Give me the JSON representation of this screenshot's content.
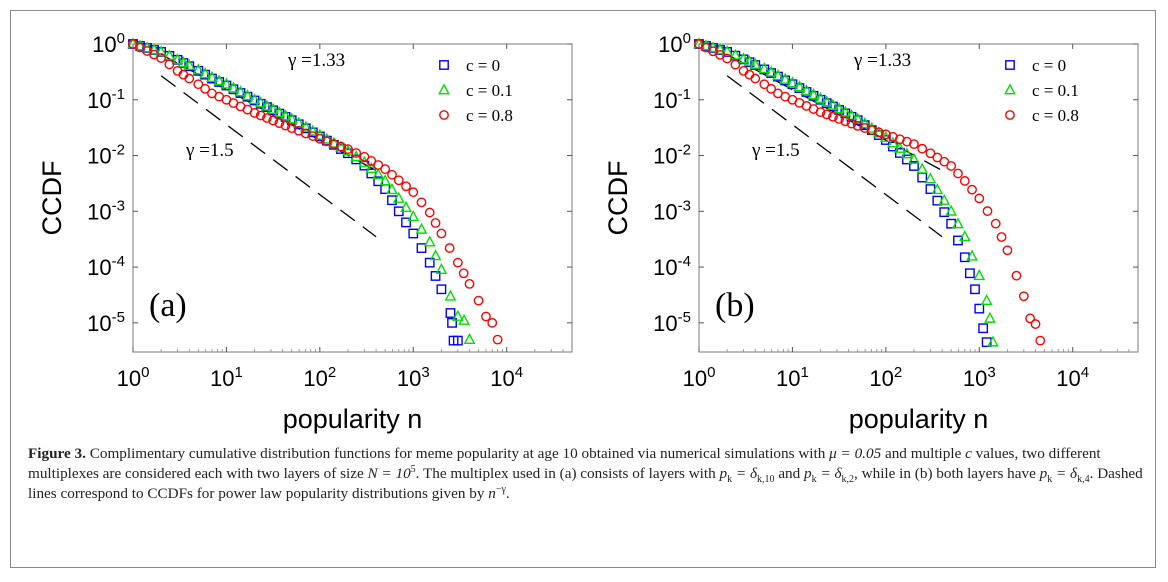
{
  "figure": {
    "caption_label": "Figure 3.",
    "caption_part1": " Complimentary cumulative distribution functions for meme popularity at age 10 obtained via numerical simulations with ",
    "caption_mu": "μ = 0.05",
    "caption_part2": " and multiple ",
    "caption_c": "c",
    "caption_part3": " values, two different multiplexes are considered each with two layers of size ",
    "caption_N": "N = 10",
    "caption_N_exp": "5",
    "caption_part4": ". The multiplex used in (a) consists of layers with ",
    "caption_pk1": "p",
    "caption_pk1_sub": "k",
    "caption_eq1": " = δ",
    "caption_eq1_sub": "k,10",
    "caption_part5": " and ",
    "caption_pk2": "p",
    "caption_pk2_sub": "k",
    "caption_eq2": " = δ",
    "caption_eq2_sub": "k,2",
    "caption_part6": ", while in (b) both layers have ",
    "caption_pk3": "p",
    "caption_pk3_sub": "k",
    "caption_eq3": " = δ",
    "caption_eq3_sub": "k,4",
    "caption_part7": ". Dashed lines correspond to CCDFs for power law popularity distributions given by ",
    "caption_n": "n",
    "caption_n_exp": "−γ",
    "caption_end": "."
  },
  "colors": {
    "c0": "#0000ff",
    "c01": "#00e000",
    "c08": "#ff0000",
    "guide": "#000000"
  },
  "chart_data": [
    {
      "type": "scatter",
      "panel_label": "(a)",
      "xlabel": "popularity n",
      "ylabel": "CCDF",
      "xscale": "log",
      "yscale": "log",
      "xlim": [
        1,
        50000
      ],
      "ylim": [
        3e-06,
        1
      ],
      "xticks": [
        "10^0",
        "10^1",
        "10^2",
        "10^3",
        "10^4"
      ],
      "yticks": [
        "10^0",
        "10^-1",
        "10^-2",
        "10^-3",
        "10^-4",
        "10^-5"
      ],
      "legend_position": "top-right",
      "series": [
        {
          "name": "c = 0",
          "marker": "square",
          "color": "#0000ff",
          "points": [
            [
              1,
              1
            ],
            [
              2,
              0.72
            ],
            [
              3,
              0.52
            ],
            [
              4,
              0.4
            ],
            [
              5,
              0.33
            ],
            [
              7,
              0.24
            ],
            [
              10,
              0.18
            ],
            [
              20,
              0.097
            ],
            [
              50,
              0.043
            ],
            [
              100,
              0.022
            ],
            [
              200,
              0.011
            ],
            [
              300,
              0.0066
            ],
            [
              500,
              0.0025
            ],
            [
              700,
              0.001
            ],
            [
              1000,
              0.0004
            ],
            [
              1500,
              0.00012
            ],
            [
              2000,
              4e-05
            ],
            [
              2500,
              1.5e-05
            ],
            [
              2600,
              1e-05
            ],
            [
              2700,
              4.8e-06
            ],
            [
              3000,
              4.8e-06
            ]
          ]
        },
        {
          "name": "c = 0.1",
          "marker": "triangle",
          "color": "#00e000",
          "points": [
            [
              1,
              1
            ],
            [
              2,
              0.72
            ],
            [
              3,
              0.52
            ],
            [
              4,
              0.41
            ],
            [
              5,
              0.34
            ],
            [
              7,
              0.25
            ],
            [
              10,
              0.19
            ],
            [
              20,
              0.1
            ],
            [
              50,
              0.045
            ],
            [
              100,
              0.023
            ],
            [
              200,
              0.012
            ],
            [
              300,
              0.0075
            ],
            [
              500,
              0.0035
            ],
            [
              700,
              0.0017
            ],
            [
              1000,
              0.0008
            ],
            [
              1500,
              0.00028
            ],
            [
              2000,
              9e-05
            ],
            [
              2500,
              3e-05
            ],
            [
              3000,
              1.3e-05
            ],
            [
              3500,
              1.1e-05
            ],
            [
              4000,
              5e-06
            ]
          ]
        },
        {
          "name": "c = 0.8",
          "marker": "circle",
          "color": "#ff0000",
          "points": [
            [
              1,
              1
            ],
            [
              2,
              0.56
            ],
            [
              3,
              0.33
            ],
            [
              4,
              0.24
            ],
            [
              5,
              0.19
            ],
            [
              7,
              0.13
            ],
            [
              10,
              0.1
            ],
            [
              20,
              0.058
            ],
            [
              50,
              0.031
            ],
            [
              100,
              0.02
            ],
            [
              200,
              0.013
            ],
            [
              300,
              0.0095
            ],
            [
              500,
              0.0057
            ],
            [
              700,
              0.0036
            ],
            [
              1000,
              0.0022
            ],
            [
              1500,
              0.00095
            ],
            [
              2000,
              0.0004
            ],
            [
              3000,
              0.00012
            ],
            [
              4000,
              5e-05
            ],
            [
              5000,
              2.5e-05
            ],
            [
              6000,
              1.3e-05
            ],
            [
              7000,
              1e-05
            ],
            [
              8000,
              5e-06
            ]
          ]
        }
      ],
      "guides": [
        {
          "label": "γ =1.33",
          "x_start": 2,
          "y_start": 0.65,
          "x_end": 400,
          "y_end": 0.0054
        },
        {
          "label": "γ =1.5",
          "x_start": 2,
          "y_start": 0.27,
          "x_end": 400,
          "y_end": 0.00035
        }
      ]
    },
    {
      "type": "scatter",
      "panel_label": "(b)",
      "xlabel": "popularity n",
      "ylabel": "CCDF",
      "xscale": "log",
      "yscale": "log",
      "xlim": [
        1,
        50000
      ],
      "ylim": [
        3e-06,
        1
      ],
      "xticks": [
        "10^0",
        "10^1",
        "10^2",
        "10^3",
        "10^4"
      ],
      "yticks": [
        "10^0",
        "10^-1",
        "10^-2",
        "10^-3",
        "10^-4",
        "10^-5"
      ],
      "legend_position": "top-right",
      "series": [
        {
          "name": "c = 0",
          "marker": "square",
          "color": "#0000ff",
          "points": [
            [
              1,
              1
            ],
            [
              2,
              0.72
            ],
            [
              3,
              0.53
            ],
            [
              4,
              0.42
            ],
            [
              5,
              0.35
            ],
            [
              7,
              0.26
            ],
            [
              10,
              0.19
            ],
            [
              20,
              0.1
            ],
            [
              50,
              0.043
            ],
            [
              100,
              0.019
            ],
            [
              200,
              0.0065
            ],
            [
              300,
              0.0025
            ],
            [
              500,
              0.0006
            ],
            [
              700,
              0.00015
            ],
            [
              900,
              4e-05
            ],
            [
              1000,
              1.8e-05
            ],
            [
              1100,
              8e-06
            ],
            [
              1200,
              4.5e-06
            ]
          ]
        },
        {
          "name": "c = 0.1",
          "marker": "triangle",
          "color": "#00e000",
          "points": [
            [
              1,
              1
            ],
            [
              2,
              0.73
            ],
            [
              3,
              0.54
            ],
            [
              4,
              0.43
            ],
            [
              5,
              0.36
            ],
            [
              7,
              0.27
            ],
            [
              10,
              0.2
            ],
            [
              20,
              0.105
            ],
            [
              50,
              0.045
            ],
            [
              100,
              0.021
            ],
            [
              200,
              0.0085
            ],
            [
              300,
              0.0038
            ],
            [
              500,
              0.001
            ],
            [
              700,
              0.00035
            ],
            [
              1000,
              7e-05
            ],
            [
              1200,
              2.5e-05
            ],
            [
              1300,
              1.2e-05
            ],
            [
              1400,
              4.5e-06
            ]
          ]
        },
        {
          "name": "c = 0.8",
          "marker": "circle",
          "color": "#ff0000",
          "points": [
            [
              1,
              1
            ],
            [
              2,
              0.55
            ],
            [
              3,
              0.33
            ],
            [
              4,
              0.24
            ],
            [
              5,
              0.19
            ],
            [
              7,
              0.13
            ],
            [
              10,
              0.1
            ],
            [
              20,
              0.06
            ],
            [
              50,
              0.034
            ],
            [
              100,
              0.024
            ],
            [
              200,
              0.016
            ],
            [
              300,
              0.011
            ],
            [
              500,
              0.0065
            ],
            [
              700,
              0.0035
            ],
            [
              1000,
              0.0017
            ],
            [
              1500,
              0.0006
            ],
            [
              2000,
              0.0002
            ],
            [
              2500,
              7e-05
            ],
            [
              3000,
              3e-05
            ],
            [
              3500,
              1.2e-05
            ],
            [
              4000,
              9.5e-06
            ],
            [
              4500,
              4.8e-06
            ]
          ]
        }
      ],
      "guides": [
        {
          "label": "γ =1.33",
          "x_start": 2,
          "y_start": 0.65,
          "x_end": 400,
          "y_end": 0.0054
        },
        {
          "label": "γ =1.5",
          "x_start": 2,
          "y_start": 0.27,
          "x_end": 400,
          "y_end": 0.00035
        }
      ]
    }
  ]
}
